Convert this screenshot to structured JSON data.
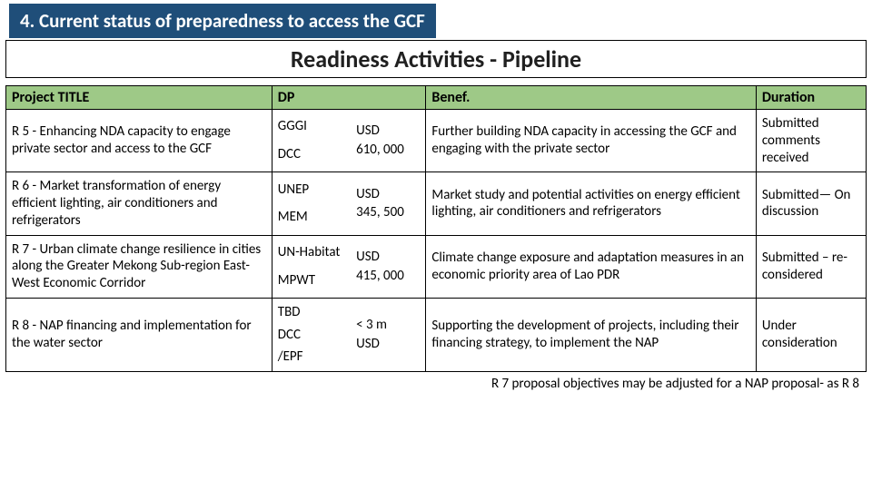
{
  "banner": "4. Current status of preparedness to access the GCF",
  "subtitle": "Readiness Activities - Pipeline",
  "headers": {
    "title": "Project TITLE",
    "dp": "DP",
    "amt": "",
    "benef": "Benef.",
    "duration": "Duration"
  },
  "rows": [
    {
      "title": "R 5 - Enhancing NDA capacity to engage private sector and access to the GCF",
      "dp1": "GGGI",
      "dp2": "DCC",
      "amt_label": "USD",
      "amt_val": "610, 000",
      "benef": "Further building NDA capacity in accessing the GCF and engaging with the private sector",
      "duration": "Submitted comments received"
    },
    {
      "title": "R 6 - Market transformation of energy efficient lighting, air conditioners and refrigerators",
      "dp1": "UNEP",
      "dp2": "MEM",
      "amt_label": "USD",
      "amt_val": "345, 500",
      "benef": "Market study and potential activities on energy efficient lighting, air conditioners and refrigerators",
      "duration": "Submitted— On discussion"
    },
    {
      "title": "R 7 - Urban climate change resilience in cities along the Greater Mekong Sub-region East-West Economic Corridor",
      "dp1": "UN-Habitat",
      "dp2": "MPWT",
      "amt_label": "USD",
      "amt_val": "415, 000",
      "benef": "Climate change exposure and adaptation measures in an economic priority area of Lao PDR",
      "duration": "Submitted – re-considered"
    },
    {
      "title": "R 8 - NAP financing and implementation for the water sector",
      "dp1": "TBD",
      "dp2": "DCC",
      "dp3": "/EPF",
      "amt_label": "< 3 m",
      "amt_val": "USD",
      "benef": "Supporting the development of projects, including their financing strategy, to implement the NAP",
      "duration": "Under consideration"
    }
  ],
  "footnote": "R 7 proposal objectives may be adjusted for a  NAP proposal- as R 8",
  "colors": {
    "banner_bg": "#1f4e79",
    "header_bg": "#9ec987",
    "border": "#000000",
    "text": "#000000",
    "bg": "#ffffff"
  }
}
